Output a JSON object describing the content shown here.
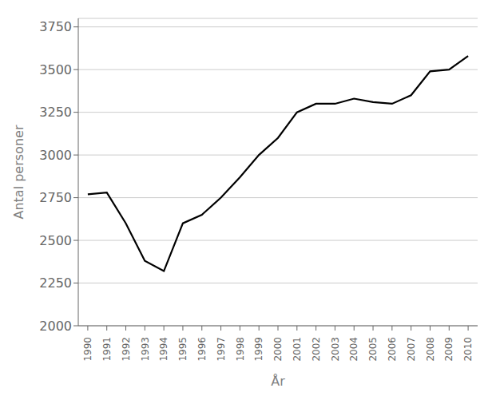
{
  "chart_data": {
    "type": "line",
    "x": [
      1990,
      1991,
      1992,
      1993,
      1994,
      1995,
      1996,
      1997,
      1998,
      1999,
      2000,
      2001,
      2002,
      2003,
      2004,
      2005,
      2006,
      2007,
      2008,
      2009,
      2010
    ],
    "values": [
      2770,
      2780,
      2600,
      2380,
      2320,
      2600,
      2650,
      2750,
      2870,
      3000,
      3100,
      3250,
      3300,
      3300,
      3330,
      3310,
      3300,
      3350,
      3490,
      3500,
      3580
    ],
    "xlabel": "År",
    "ylabel": "Antal personer",
    "xlim": [
      1989.5,
      2010.5
    ],
    "xticks": [
      1990,
      1991,
      1992,
      1993,
      1994,
      1995,
      1996,
      1997,
      1998,
      1999,
      2000,
      2001,
      2002,
      2003,
      2004,
      2005,
      2006,
      2007,
      2008,
      2009,
      2010
    ],
    "ylim": [
      2000,
      3800
    ],
    "yticks": [
      2000,
      2250,
      2500,
      2750,
      3000,
      3250,
      3500,
      3750
    ],
    "color": "#000000",
    "grid": true
  }
}
